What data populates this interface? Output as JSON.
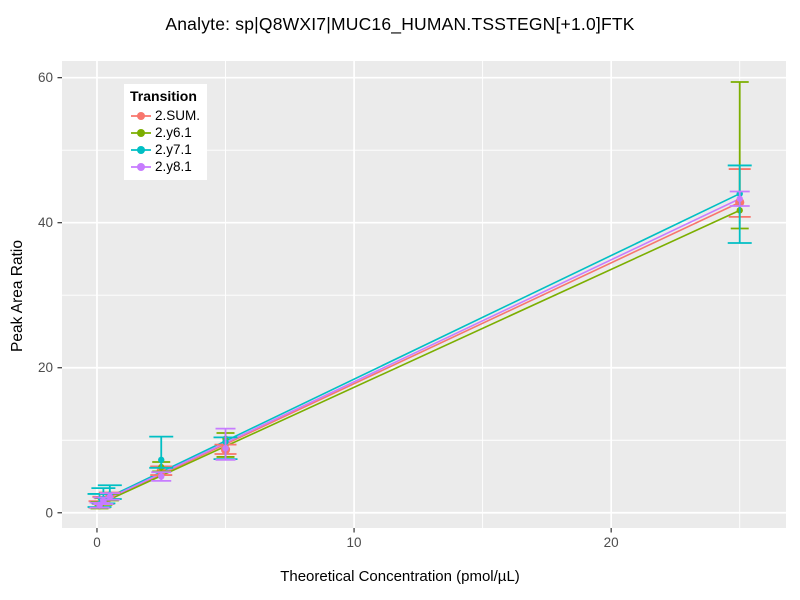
{
  "chart_data": {
    "type": "scatter",
    "title": "Analyte: sp|Q8WXI7|MUC16_HUMAN.TSSTEGN[+1.0]FTK",
    "xlabel": "Theoretical Concentration (pmol/µL)",
    "ylabel": "Peak Area Ratio",
    "xlim": [
      -1.36,
      26.8
    ],
    "ylim": [
      -2.1,
      62.3
    ],
    "x_ticks": [
      0,
      10,
      20
    ],
    "y_ticks": [
      0,
      20,
      40,
      60
    ],
    "x_minor_ticks": [
      5,
      15,
      25
    ],
    "y_minor_ticks": [
      10,
      30,
      50
    ],
    "grid": "white-on-gray",
    "legend": {
      "title": "Transition",
      "position": "top-left-inside"
    },
    "colors": {
      "panel_bg": "#EBEBEB",
      "grid": "#FFFFFF",
      "tick_mark": "#333333",
      "tick_label": "#4D4D4D",
      "text": "#000000"
    },
    "concentrations": [
      0.1,
      0.25,
      0.5,
      2.5,
      5,
      25
    ],
    "series": [
      {
        "name": "2.SUM.",
        "color": "#F8766D",
        "values": [
          1.1,
          1.7,
          2.3,
          5.8,
          8.7,
          42.8
        ],
        "err_lo": [
          0.7,
          1.2,
          1.9,
          5.2,
          8.1,
          40.8
        ],
        "err_hi": [
          1.6,
          2.2,
          2.8,
          6.4,
          9.4,
          47.4
        ],
        "point_radius": 4.6,
        "cap_halfwidth": 11,
        "trend": {
          "x": [
            0.1,
            25
          ],
          "y": [
            1.3,
            42.8
          ]
        }
      },
      {
        "name": "2.y6.1",
        "color": "#7CAE00",
        "values": [
          1.0,
          1.5,
          2.1,
          6.3,
          10.2,
          41.7
        ],
        "err_lo": [
          0.6,
          1.1,
          1.7,
          5.7,
          7.7,
          39.2
        ],
        "err_hi": [
          1.5,
          2.0,
          2.6,
          7.0,
          11.0,
          59.4
        ],
        "point_radius": 3.2,
        "cap_halfwidth": 9,
        "trend": {
          "x": [
            0.1,
            25
          ],
          "y": [
            1.2,
            41.7
          ]
        }
      },
      {
        "name": "2.y7.1",
        "color": "#00BFC4",
        "values": [
          1.2,
          1.9,
          2.5,
          7.3,
          9.8,
          44.0
        ],
        "err_lo": [
          0.8,
          1.3,
          1.9,
          6.2,
          7.4,
          37.2
        ],
        "err_hi": [
          2.6,
          3.4,
          3.8,
          10.5,
          10.4,
          47.9
        ],
        "point_radius": 3.2,
        "cap_halfwidth": 12,
        "trend": {
          "x": [
            0.1,
            25
          ],
          "y": [
            1.55,
            44.0
          ]
        }
      },
      {
        "name": "2.y8.1",
        "color": "#C77CFF",
        "values": [
          1.0,
          1.6,
          2.2,
          5.0,
          8.9,
          43.3
        ],
        "err_lo": [
          0.7,
          1.2,
          1.8,
          4.4,
          7.3,
          42.3
        ],
        "err_hi": [
          1.4,
          2.1,
          2.7,
          5.6,
          11.6,
          44.3
        ],
        "point_radius": 3.2,
        "cap_halfwidth": 10,
        "trend": {
          "x": [
            0.1,
            25
          ],
          "y": [
            1.4,
            43.3
          ]
        }
      }
    ]
  }
}
